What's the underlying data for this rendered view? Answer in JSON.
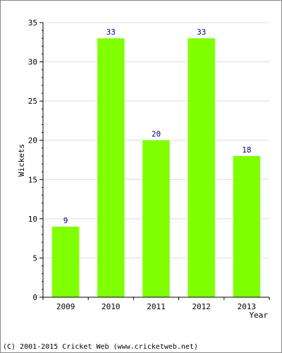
{
  "chart_data": {
    "type": "bar",
    "categories": [
      "2009",
      "2010",
      "2011",
      "2012",
      "2013"
    ],
    "values": [
      9,
      33,
      20,
      33,
      18
    ],
    "data_labels": [
      "9",
      "33",
      "20",
      "33",
      "18"
    ],
    "xlabel": "Year",
    "ylabel": "Wickets",
    "ylim": [
      0,
      35
    ],
    "yticks": [
      0,
      5,
      10,
      15,
      20,
      25,
      30,
      35
    ],
    "grid": "horizontal",
    "bar_color": "#80ff00",
    "label_color": "#000080"
  },
  "footer": {
    "copyright": "(C) 2001-2015 Cricket Web (www.cricketweb.net)"
  }
}
